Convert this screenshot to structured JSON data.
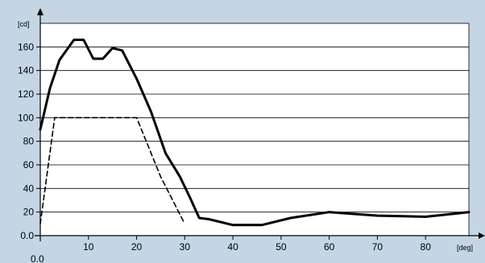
{
  "chart_data": {
    "type": "line",
    "title": "",
    "x_unit": "[deg]",
    "y_unit": "[cd]",
    "xlim": [
      0,
      89
    ],
    "ylim": [
      0,
      180
    ],
    "x_ticks": [
      0,
      10,
      20,
      30,
      40,
      50,
      60,
      70,
      80
    ],
    "x_tick_labels": [
      "",
      "10",
      "20",
      "30",
      "40",
      "50",
      "60",
      "70",
      "80"
    ],
    "origin_label": "0.0",
    "y_ticks": [
      0,
      20,
      40,
      60,
      80,
      100,
      120,
      140,
      160
    ],
    "y_tick_labels": [
      "0.0",
      "20",
      "40",
      "60",
      "80",
      "100",
      "120",
      "140",
      "160"
    ],
    "grid": "horizontal",
    "legend": "none",
    "background_color": "#c5d5e4",
    "plot_color": "#ffffff",
    "line_color": "#000000",
    "series": [
      {
        "style": "solid",
        "x": [
          0,
          2,
          4,
          7,
          9,
          11,
          13,
          15,
          17,
          20,
          23,
          26,
          29,
          31,
          33,
          35,
          40,
          46,
          52,
          60,
          70,
          80,
          89
        ],
        "y": [
          90,
          125,
          149,
          166,
          166,
          150,
          150,
          159,
          157,
          133,
          105,
          70,
          50,
          33,
          15,
          14,
          9,
          9,
          15,
          20,
          17,
          16,
          20
        ]
      },
      {
        "style": "dashed",
        "x": [
          0,
          3,
          20,
          25,
          30
        ],
        "y": [
          10,
          100,
          100,
          50,
          10
        ]
      }
    ]
  }
}
